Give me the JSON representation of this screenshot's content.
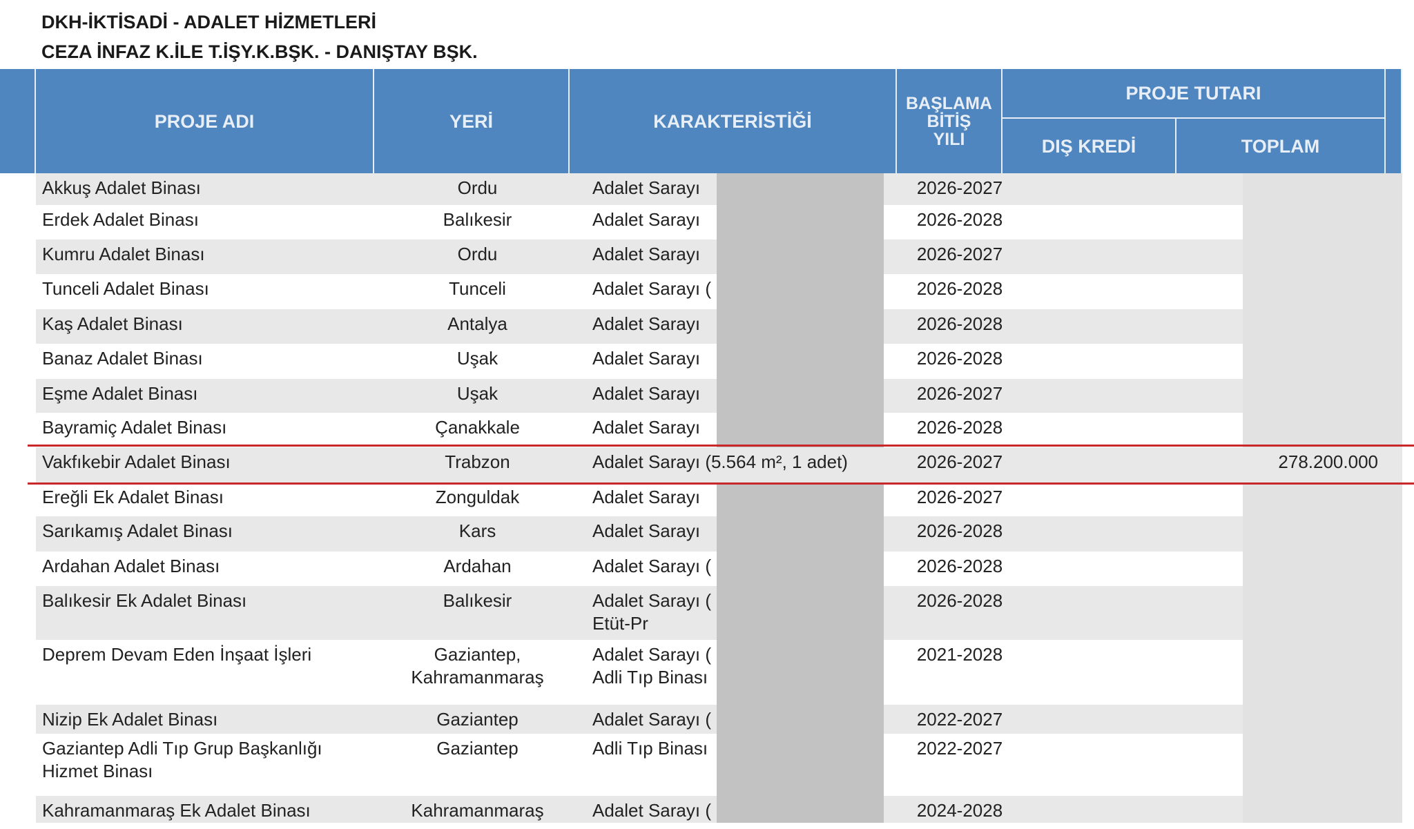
{
  "header": {
    "title": "DKH-İKTİSADİ - ADALET HİZMETLERİ",
    "subtitle": "CEZA İNFAZ K.İLE T.İŞY.K.BŞK. - DANIŞTAY BŞK."
  },
  "table": {
    "columns": {
      "name": "PROJE ADI",
      "place": "YERİ",
      "characteristic": "KARAKTERİSTİĞİ",
      "years": "BAŞLAMA\nBİTİŞ\nYILI",
      "amount": "PROJE TUTARI",
      "foreign": "DIŞ KREDİ",
      "total": "TOPLAM"
    },
    "rows": [
      {
        "name": "Akkuş Adalet Binası",
        "place": "Ordu",
        "characteristic": "Adalet Sarayı",
        "years": "2026-2027"
      },
      {
        "name": "Erdek Adalet Binası",
        "place": "Balıkesir",
        "characteristic": "Adalet Sarayı",
        "years": "2026-2028"
      },
      {
        "name": "Kumru Adalet Binası",
        "place": "Ordu",
        "characteristic": "Adalet Sarayı",
        "years": "2026-2027"
      },
      {
        "name": "Tunceli Adalet Binası",
        "place": "Tunceli",
        "characteristic": "Adalet Sarayı (",
        "years": "2026-2028"
      },
      {
        "name": "Kaş Adalet Binası",
        "place": "Antalya",
        "characteristic": "Adalet Sarayı",
        "years": "2026-2028"
      },
      {
        "name": "Banaz Adalet Binası",
        "place": "Uşak",
        "characteristic": "Adalet Sarayı",
        "years": "2026-2028"
      },
      {
        "name": "Eşme Adalet Binası",
        "place": "Uşak",
        "characteristic": "Adalet Sarayı",
        "years": "2026-2027"
      },
      {
        "name": "Bayramiç Adalet Binası",
        "place": "Çanakkale",
        "characteristic": "Adalet Sarayı",
        "years": "2026-2028"
      },
      {
        "name": "Vakfıkebir Adalet Binası",
        "place": "Trabzon",
        "characteristic": "Adalet Sarayı (5.564 m², 1 adet)",
        "years": "2026-2027",
        "total": "278.200.000"
      },
      {
        "name": "Ereğli Ek Adalet Binası",
        "place": "Zonguldak",
        "characteristic": "Adalet Sarayı",
        "years": "2026-2027"
      },
      {
        "name": "Sarıkamış Adalet Binası",
        "place": "Kars",
        "characteristic": "Adalet Sarayı",
        "years": "2026-2028"
      },
      {
        "name": "Ardahan Adalet Binası",
        "place": "Ardahan",
        "characteristic": "Adalet Sarayı (",
        "years": "2026-2028"
      },
      {
        "name": "Balıkesir Ek Adalet Binası",
        "place": "Balıkesir",
        "characteristic": "Adalet Sarayı (\n   Etüt-Pr",
        "years": "2026-2028"
      },
      {
        "name": "Deprem Devam Eden İnşaat İşleri",
        "place": "Gaziantep,\nKahramanmaraş",
        "characteristic": "Adalet Sarayı (\nAdli Tıp Binası",
        "years": "2021-2028"
      },
      {
        "name": "Nizip Ek Adalet Binası",
        "place": "Gaziantep",
        "characteristic": "Adalet Sarayı (",
        "years": "2022-2027"
      },
      {
        "name": "Gaziantep Adli Tıp Grup Başkanlığı\nHizmet Binası",
        "place": "Gaziantep",
        "characteristic": "Adli Tıp Binası",
        "years": "2022-2027"
      },
      {
        "name": "Kahramanmaraş Ek Adalet Binası",
        "place": "Kahramanmaraş",
        "characteristic": "Adalet Sarayı (",
        "years": "2024-2028"
      }
    ]
  }
}
